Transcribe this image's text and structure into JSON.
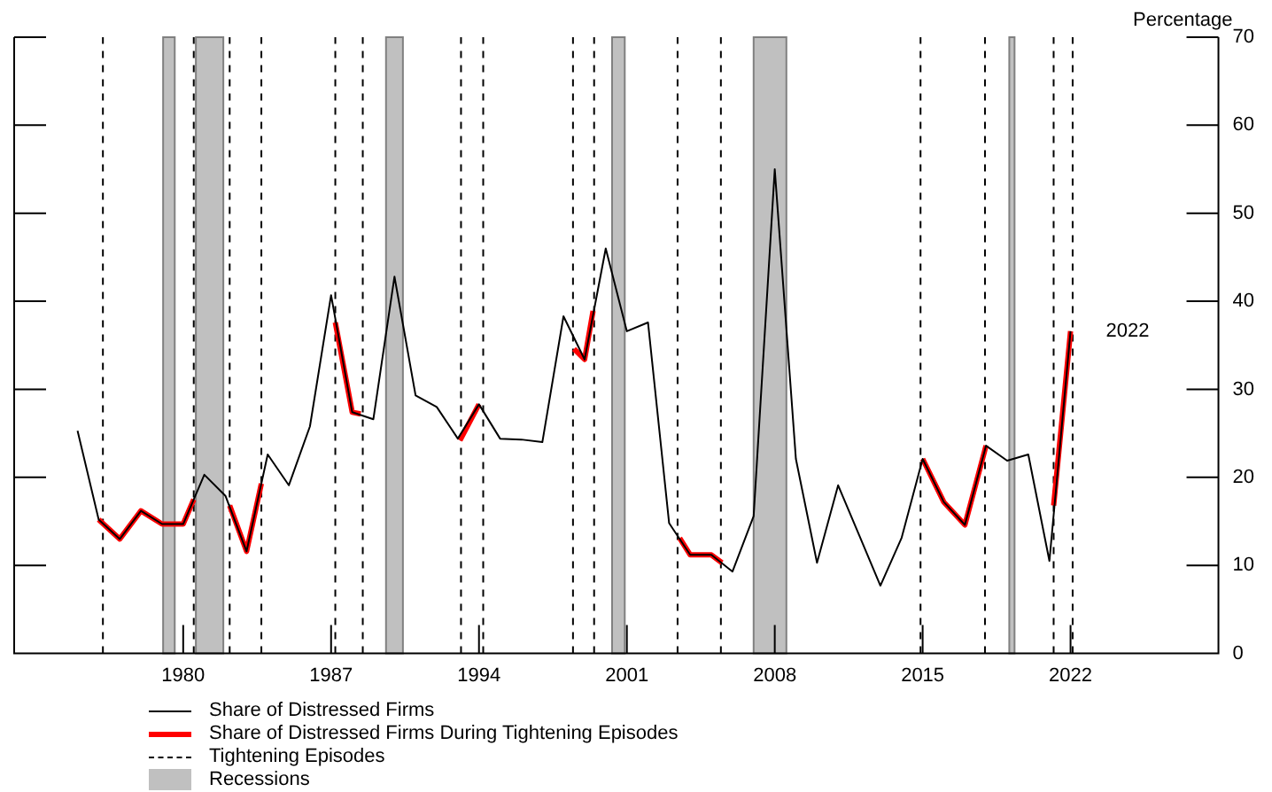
{
  "chart_data": {
    "type": "line",
    "ylabel": "Percentage",
    "xlim": [
      1972,
      2029
    ],
    "xticks": [
      1980,
      1987,
      1994,
      2001,
      2008,
      2015,
      2022
    ],
    "ylim": [
      0,
      70
    ],
    "yticks": [
      0,
      10,
      20,
      30,
      40,
      50,
      60,
      70
    ],
    "grid": false,
    "legend": "bottom left",
    "marker": "none",
    "series": [
      {
        "name": "Share of Distressed Firms",
        "color": "#000000",
        "x": [
          1975,
          1976,
          1977,
          1978,
          1979,
          1980,
          1981,
          1982,
          1983,
          1984,
          1985,
          1986,
          1987,
          1988,
          1989,
          1990,
          1991,
          1992,
          1993,
          1994,
          1995,
          1996,
          1997,
          1998,
          1999,
          2000,
          2001,
          2002,
          2003,
          2004,
          2005,
          2006,
          2007,
          2008,
          2009,
          2010,
          2011,
          2012,
          2013,
          2014,
          2015,
          2016,
          2017,
          2018,
          2019,
          2020,
          2021,
          2022
        ],
        "values": [
          25.3,
          15.2,
          13.0,
          16.2,
          14.7,
          14.7,
          20.3,
          17.9,
          11.6,
          22.6,
          19.1,
          25.8,
          40.7,
          27.4,
          26.6,
          42.8,
          29.3,
          28.0,
          24.4,
          28.3,
          24.4,
          24.3,
          24.0,
          38.3,
          33.4,
          46.0,
          36.6,
          37.6,
          14.8,
          11.2,
          11.2,
          9.3,
          15.6,
          55.0,
          22.1,
          10.3,
          19.1,
          13.4,
          7.7,
          13.1,
          22.1,
          17.2,
          14.6,
          23.6,
          21.9,
          22.6,
          10.5,
          36.6
        ]
      },
      {
        "name": "Share of Distressed Firms During Tightening Episodes",
        "color": "#ff0000",
        "x": [
          1976,
          1977,
          1978,
          1979,
          1980,
          1980.5,
          1981,
          1982.2,
          1983,
          1983.7,
          1985,
          1987.2,
          1988,
          1988.4,
          1990,
          1993.1,
          1994,
          1996,
          1998.5,
          1999,
          1999.4,
          2002,
          2003.5,
          2004,
          2005,
          2005.5,
          2010,
          2015,
          2016,
          2017,
          2018,
          2020,
          2021.2,
          2022
        ],
        "values": [
          15.2,
          13.0,
          16.2,
          14.7,
          14.7,
          17.5,
          null,
          16.8,
          11.6,
          19.3,
          null,
          37.6,
          27.4,
          27.2,
          null,
          24.2,
          28.3,
          null,
          34.6,
          33.4,
          38.9,
          null,
          13.1,
          11.2,
          11.2,
          10.3,
          null,
          22.1,
          17.2,
          14.6,
          23.6,
          null,
          16.8,
          36.6
        ]
      }
    ],
    "ref_lines": [
      {
        "axis": "x",
        "value": 1976.2,
        "label": "Tightening Episodes",
        "line_style": "dashed"
      },
      {
        "axis": "x",
        "value": 1980.5,
        "line_style": "dashed"
      },
      {
        "axis": "x",
        "value": 1982.2,
        "line_style": "dashed"
      },
      {
        "axis": "x",
        "value": 1983.7,
        "line_style": "dashed"
      },
      {
        "axis": "x",
        "value": 1987.2,
        "line_style": "dashed"
      },
      {
        "axis": "x",
        "value": 1988.5,
        "line_style": "dashed"
      },
      {
        "axis": "x",
        "value": 1993.15,
        "line_style": "dashed"
      },
      {
        "axis": "x",
        "value": 1994.2,
        "line_style": "dashed"
      },
      {
        "axis": "x",
        "value": 1998.45,
        "line_style": "dashed"
      },
      {
        "axis": "x",
        "value": 1999.45,
        "line_style": "dashed"
      },
      {
        "axis": "x",
        "value": 2003.4,
        "line_style": "dashed"
      },
      {
        "axis": "x",
        "value": 2005.45,
        "line_style": "dashed"
      },
      {
        "axis": "x",
        "value": 2014.9,
        "line_style": "dashed"
      },
      {
        "axis": "x",
        "value": 2017.95,
        "line_style": "dashed"
      },
      {
        "axis": "x",
        "value": 2021.2,
        "line_style": "dashed"
      },
      {
        "axis": "x",
        "value": 2022.1,
        "line_style": "dashed"
      }
    ],
    "bands": [
      {
        "axis": "x",
        "from": 1979.05,
        "to": 1979.6,
        "label": "Recessions",
        "color": "#c0c0c0"
      },
      {
        "axis": "x",
        "from": 1980.6,
        "to": 1981.9,
        "color": "#c0c0c0"
      },
      {
        "axis": "x",
        "from": 1989.6,
        "to": 1990.4,
        "color": "#c0c0c0"
      },
      {
        "axis": "x",
        "from": 2000.3,
        "to": 2000.9,
        "color": "#c0c0c0"
      },
      {
        "axis": "x",
        "from": 2007.0,
        "to": 2008.55,
        "color": "#c0c0c0"
      },
      {
        "axis": "x",
        "from": 2019.1,
        "to": 2019.35,
        "color": "#c0c0c0"
      }
    ],
    "annotations": [
      {
        "text": "2022",
        "x": 2022,
        "y": 36.6
      }
    ]
  }
}
